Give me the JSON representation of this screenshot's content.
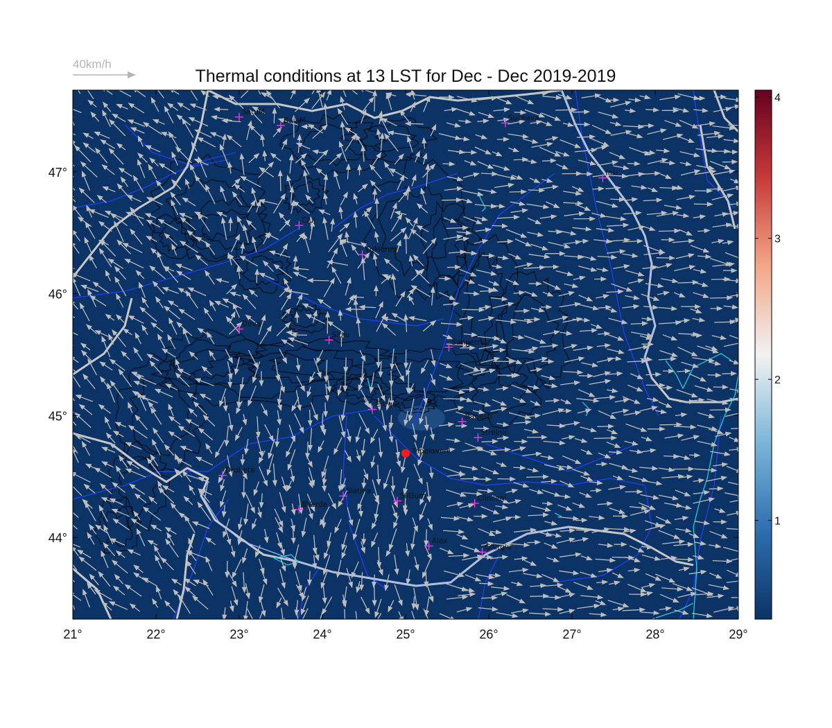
{
  "title": "Thermal conditions at 13 LST for Dec - Dec  2019-2019",
  "reference_vector": {
    "label": "40km/h"
  },
  "map": {
    "lon_range": [
      21,
      29
    ],
    "lat_range": [
      43.33,
      47.67
    ],
    "lon_ticks": [
      "21°",
      "22°",
      "23°",
      "24°",
      "25°",
      "26°",
      "27°",
      "28°",
      "29°"
    ],
    "lat_ticks": [
      "44°",
      "45°",
      "46°",
      "47°"
    ],
    "background_color": "#0b3366",
    "boundary_color": "#c8c8c8",
    "river_color": "#1f3ff0",
    "coast_color": "#27d6e6",
    "vector_color": "#bdbdbd"
  },
  "colorbar": {
    "ticks": [
      "1",
      "2",
      "3",
      "4"
    ],
    "range": [
      0.3,
      4.05
    ],
    "colors": [
      "#0b3366",
      "#2d6fb0",
      "#7ab5d8",
      "#f2f2f2",
      "#f3a787",
      "#c83b3a",
      "#67001f"
    ]
  },
  "stations": [
    {
      "name": "SatuM",
      "lon": 23.0,
      "lat": 47.45
    },
    {
      "name": "BaiaM",
      "lon": 23.5,
      "lat": 47.38
    },
    {
      "name": "Suceava",
      "lon": 26.2,
      "lat": 47.4
    },
    {
      "name": "Iasi",
      "lon": 27.37,
      "lat": 46.95
    },
    {
      "name": "Cluj",
      "lon": 23.72,
      "lat": 46.56
    },
    {
      "name": "TgMures",
      "lon": 24.48,
      "lat": 46.32
    },
    {
      "name": "Deva",
      "lon": 23.0,
      "lat": 45.71
    },
    {
      "name": "Sibiu",
      "lon": 24.08,
      "lat": 45.62
    },
    {
      "name": "Sanpetru",
      "lon": 25.52,
      "lat": 45.56
    },
    {
      "name": "CArges",
      "lon": 24.6,
      "lat": 45.05
    },
    {
      "name": "Banesti",
      "lon": 25.68,
      "lat": 44.95
    },
    {
      "name": "Strejnic",
      "lon": 25.87,
      "lat": 44.82
    },
    {
      "name": "Drobeta",
      "lon": 22.8,
      "lat": 44.51
    },
    {
      "name": "Slatina",
      "lon": 24.25,
      "lat": 44.34
    },
    {
      "name": "SilGum",
      "lon": 24.9,
      "lat": 44.3
    },
    {
      "name": "Clinceni",
      "lon": 25.83,
      "lat": 44.28
    },
    {
      "name": "BVerde",
      "lon": 23.72,
      "lat": 44.23
    },
    {
      "name": "Alex",
      "lon": 25.28,
      "lat": 43.93
    },
    {
      "name": "Giurgiu",
      "lon": 25.92,
      "lat": 43.88
    }
  ],
  "highlight_station": {
    "name": "Topoloveni",
    "lon": 25.0,
    "lat": 44.69,
    "color": "#ff1a1a"
  }
}
